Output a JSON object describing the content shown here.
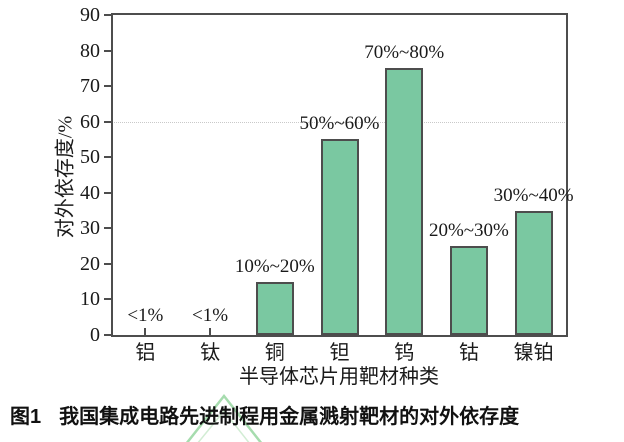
{
  "figure": {
    "caption_prefix": "图1",
    "caption_text": "我国集成电路先进制程用金属溅射靶材的对外依存度"
  },
  "chart_data": {
    "type": "bar",
    "title": "",
    "xlabel": "半导体芯片用靶材种类",
    "ylabel": "对外依存度/%",
    "categories": [
      "铝",
      "钛",
      "铜",
      "钽",
      "钨",
      "钴",
      "镍铂"
    ],
    "values": [
      0.5,
      0.5,
      15,
      55,
      75,
      25,
      35
    ],
    "bar_labels": [
      "<1%",
      "<1%",
      "10%~20%",
      "50%~60%",
      "70%~80%",
      "20%~30%",
      "30%~40%"
    ],
    "ylim": [
      0,
      90
    ],
    "yticks": [
      0,
      10,
      20,
      30,
      40,
      50,
      60,
      70,
      80,
      90
    ],
    "gridlines": {
      "y": [
        60
      ],
      "style": "dotted"
    },
    "legend": "none",
    "colors": {
      "bar_fill": "#7ac8a1",
      "bar_border": "#4d4d4d",
      "axis": "#4d4d4d",
      "grid": "#c9c9c9",
      "text": "#1a1a1a",
      "watermark": "#a6dcae"
    }
  }
}
